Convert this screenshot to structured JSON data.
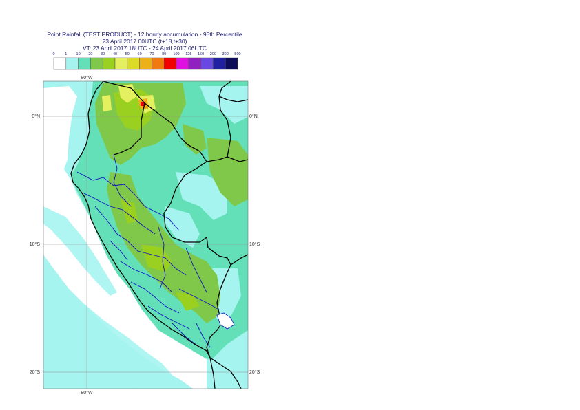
{
  "title": {
    "line1": "Point Rainfall (TEST PRODUCT) - 12 hourly accumulation - 95th Percentile",
    "line2": "23 April 2017 00UTC (t+18,t+30)",
    "line3": "VT: 23 April 2017 18UTC - 24 April 2017 06UTC"
  },
  "legend": {
    "ticks": [
      "0",
      "1",
      "10",
      "20",
      "30",
      "40",
      "50",
      "60",
      "70",
      "80",
      "100",
      "125",
      "150",
      "200",
      "300",
      "500"
    ],
    "colors": [
      "#ffffff",
      "#a6f4f0",
      "#64e0b8",
      "#80c84a",
      "#9ad020",
      "#e4f060",
      "#dcdc28",
      "#ecb018",
      "#f07a10",
      "#f00000",
      "#e010e0",
      "#9020c0",
      "#6848e0",
      "#2020a0",
      "#0c0c58"
    ]
  },
  "map": {
    "lon_labels": [
      "80°W",
      "80°W"
    ],
    "lat_labels": [
      {
        "lat": 0,
        "label": "0°N"
      },
      {
        "lat": -10,
        "label": "10°S"
      },
      {
        "lat": -20,
        "label": "20°S"
      }
    ],
    "colors": {
      "ocean_low": "#a6f4f0",
      "ocean_dry": "#ffffff",
      "land_light": "#64e0b8",
      "land_mid": "#80c84a",
      "land_high": "#9ad020",
      "peak_yellow": "#e4f060",
      "peak_orange": "#ecb018",
      "peak_red": "#f00000",
      "border_national": "#000000",
      "border_regional": "#1010c0"
    }
  }
}
